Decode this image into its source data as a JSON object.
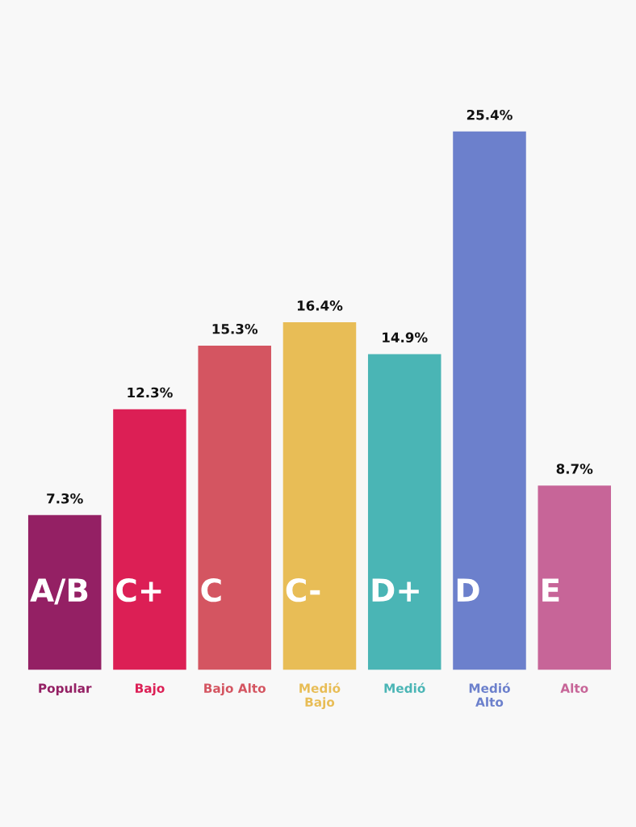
{
  "chart_data": {
    "type": "bar",
    "categories": [
      "Popular",
      "Bajo",
      "Bajo Alto",
      "Medió\nBajo",
      "Medió",
      "Medió\nAlto",
      "Alto"
    ],
    "values": [
      7.3,
      12.3,
      15.3,
      16.4,
      14.9,
      25.4,
      8.7
    ],
    "colors": [
      "#942064",
      "#dc1f55",
      "#d45561",
      "#e8bd56",
      "#4ab5b5",
      "#6c80cc",
      "#c76598"
    ],
    "value_labels": [
      "7.3%",
      "12.3%",
      "15.3%",
      "16.4%",
      "14.9%",
      "25.4%",
      "8.7%"
    ],
    "annotations": [
      "A/B",
      "C+",
      "C",
      "C-",
      "D+",
      "D",
      "E"
    ],
    "tick_labels": "x",
    "grid": false,
    "legend": false
  }
}
